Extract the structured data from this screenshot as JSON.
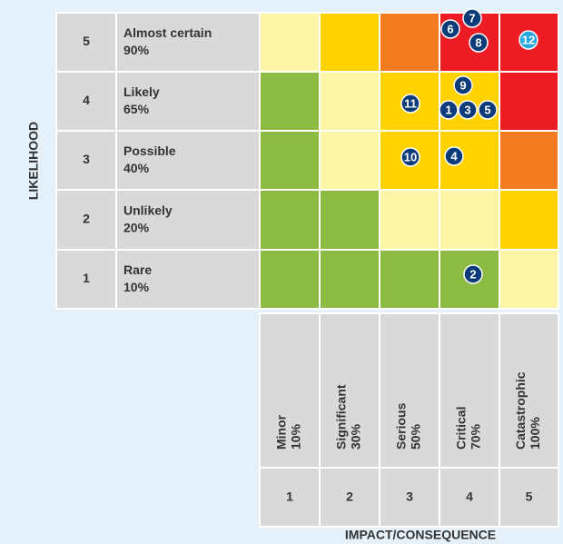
{
  "axis_labels": {
    "likelihood": "LIKELIHOOD",
    "impact": "IMPACT/CONSEQUENCE"
  },
  "likelihood": [
    {
      "level": "5",
      "label": "Almost certain",
      "percent": "90%"
    },
    {
      "level": "4",
      "label": "Likely",
      "percent": "65%"
    },
    {
      "level": "3",
      "label": "Possible",
      "percent": "40%"
    },
    {
      "level": "2",
      "label": "Unlikely",
      "percent": "20%"
    },
    {
      "level": "1",
      "label": "Rare",
      "percent": "10%"
    }
  ],
  "impact": [
    {
      "level": "1",
      "label": "Minor",
      "percent": "10%"
    },
    {
      "level": "2",
      "label": "Significant",
      "percent": "30%"
    },
    {
      "level": "3",
      "label": "Serious",
      "percent": "50%"
    },
    {
      "level": "4",
      "label": "Critical",
      "percent": "70%"
    },
    {
      "level": "5",
      "label": "Catastrophic",
      "percent": "100%"
    }
  ],
  "cell_colors": [
    [
      "#fdf5a6",
      "#ffd200",
      "#f37b21",
      "#ec1c24",
      "#ec1c24"
    ],
    [
      "#8cbb43",
      "#fdf5a6",
      "#ffd200",
      "#ffd200",
      "#ec1c24"
    ],
    [
      "#8cbb43",
      "#fdf5a6",
      "#ffd200",
      "#ffd200",
      "#f37b21"
    ],
    [
      "#8cbb43",
      "#8cbb43",
      "#fdf5a6",
      "#fdf5a6",
      "#ffd200"
    ],
    [
      "#8cbb43",
      "#8cbb43",
      "#8cbb43",
      "#8cbb43",
      "#fdf5a6"
    ]
  ],
  "risks": [
    {
      "id": "6",
      "color": "#0d3b7a"
    },
    {
      "id": "7",
      "color": "#0d3b7a"
    },
    {
      "id": "8",
      "color": "#0d3b7a"
    },
    {
      "id": "12",
      "color": "#29a8e0"
    },
    {
      "id": "9",
      "color": "#0d3b7a"
    },
    {
      "id": "1",
      "color": "#0d3b7a"
    },
    {
      "id": "3",
      "color": "#0d3b7a"
    },
    {
      "id": "5",
      "color": "#0d3b7a"
    },
    {
      "id": "11",
      "color": "#0d3b7a"
    },
    {
      "id": "10",
      "color": "#0d3b7a"
    },
    {
      "id": "4",
      "color": "#0d3b7a"
    },
    {
      "id": "2",
      "color": "#0d3b7a"
    }
  ]
}
